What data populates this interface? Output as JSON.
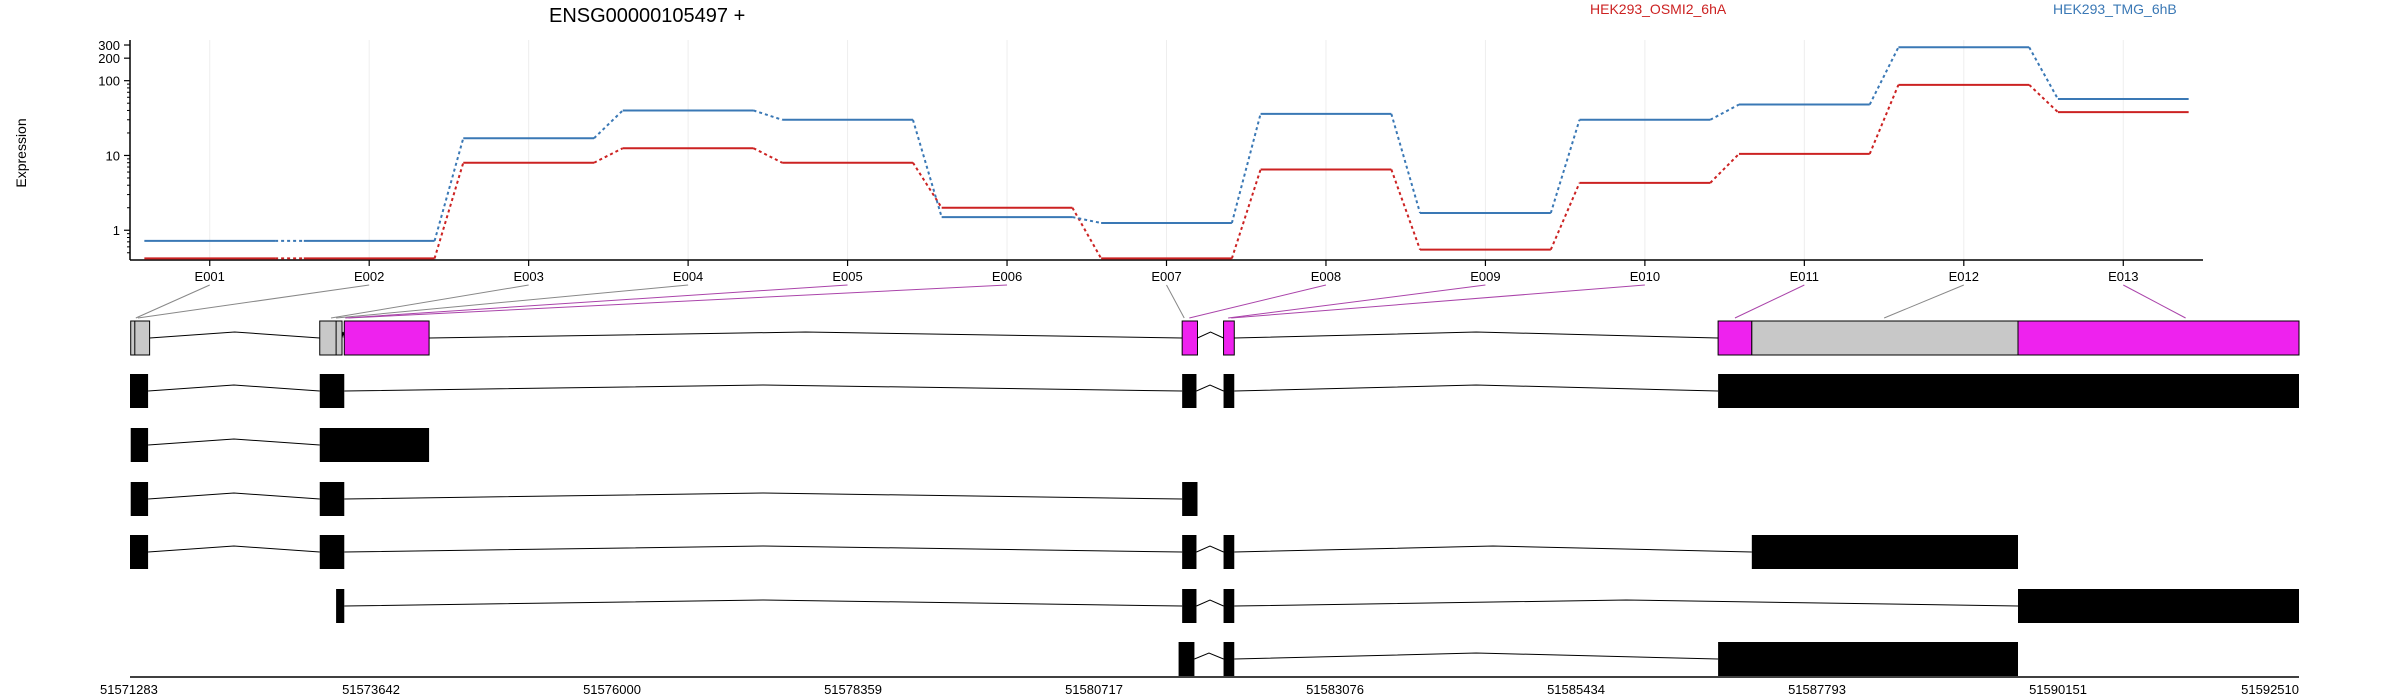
{
  "chart_data": {
    "type": "line",
    "title": "ENSG00000105497 +",
    "ylabel": "Expression",
    "yscale": "log",
    "yticks": [
      "1",
      "10",
      "100",
      "200",
      "300"
    ],
    "categories": [
      "E001",
      "E002",
      "E003",
      "E004",
      "E005",
      "E006",
      "E007",
      "E008",
      "E009",
      "E010",
      "E011",
      "E012",
      "E013"
    ],
    "legend_placement": "top",
    "grid": "vertical",
    "series": [
      {
        "name": "HEK293_OSMI2_6hA",
        "color": "#cc2222",
        "values": [
          0.42,
          0.42,
          8,
          12.5,
          8,
          2,
          0.42,
          6.5,
          0.55,
          4.3,
          10.5,
          88,
          38
        ]
      },
      {
        "name": "HEK293_TMG_6hB",
        "color": "#3a78b5",
        "values": [
          0.72,
          0.72,
          17,
          40,
          30,
          1.5,
          1.25,
          36,
          1.7,
          30,
          48,
          280,
          57
        ]
      }
    ],
    "genome_axis": {
      "ticks": [
        "51571283",
        "51573642",
        "51576000",
        "51578359",
        "51580717",
        "51583076",
        "51585434",
        "51587793",
        "51590151",
        "51592510"
      ]
    },
    "exon_mapping_colors": {
      "gray": "#888888",
      "magenta": "#aa44aa"
    },
    "gene_model_colors": {
      "exon_gray": "#c8c8c8",
      "exon_magenta": "#ee22ee",
      "transcript_exon": "#000000"
    }
  }
}
